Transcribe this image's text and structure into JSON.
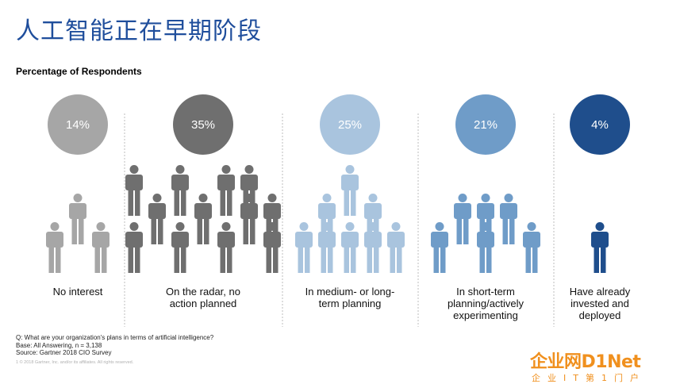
{
  "title": "人工智能正在早期阶段",
  "subtitle": "Percentage of Respondents",
  "chart_data": {
    "type": "pictograph",
    "categories": [
      "No interest",
      "On the radar, no action planned",
      "In medium- or long-term planning",
      "In short-term planning/actively experimenting",
      "Have already invested and deployed"
    ],
    "category_lines": [
      [
        "No interest"
      ],
      [
        "On the radar, no",
        "action planned"
      ],
      [
        "In medium- or long-",
        "term planning"
      ],
      [
        "In short-term",
        "planning/actively",
        "experimenting"
      ],
      [
        "Have already",
        "invested and",
        "deployed"
      ]
    ],
    "values": [
      14,
      35,
      25,
      21,
      4
    ],
    "value_labels": [
      "14%",
      "35%",
      "25%",
      "21%",
      "4%"
    ],
    "icon_counts": [
      3,
      12,
      8,
      6,
      1
    ],
    "colors": [
      "#a6a6a6",
      "#6f6f6f",
      "#a9c4de",
      "#6f9cc8",
      "#1f4e8c"
    ]
  },
  "footnotes": {
    "question": "Q: What are your organization's plans in terms of artificial intelligence?",
    "base": "Base: All Answering, n = 3,138",
    "source": "Source: Gartner 2018 CIO Survey"
  },
  "copyright": "1      © 2018 Gartner, Inc. and/or its affiliates. All rights reserved.",
  "logo": {
    "main": "企业网D1Net",
    "sub": "企业IT第1门户"
  }
}
